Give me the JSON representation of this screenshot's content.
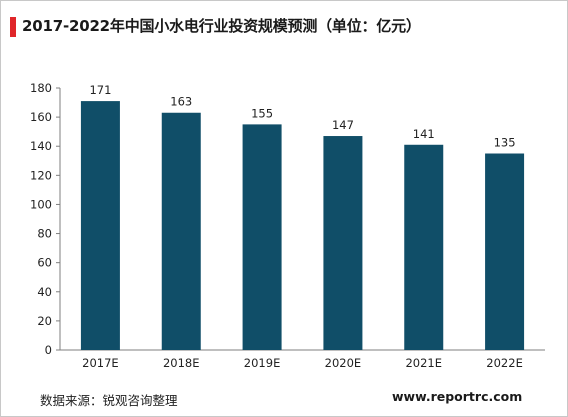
{
  "title": "2017-2022年中国小水电行业投资规模预测（单位：亿元）",
  "source": "数据来源：锐观咨询整理",
  "site": "www.reportrc.com",
  "colors": {
    "bar": "#104e68",
    "accent": "#e0262a",
    "axis": "#7f7f7f"
  },
  "chart_data": {
    "type": "bar",
    "title": "2017-2022年中国小水电行业投资规模预测（单位：亿元）",
    "categories": [
      "2017E",
      "2018E",
      "2019E",
      "2020E",
      "2021E",
      "2022E"
    ],
    "values": [
      171,
      163,
      155,
      147,
      141,
      135
    ],
    "yticks": [
      0,
      20,
      40,
      60,
      80,
      100,
      120,
      140,
      160,
      180
    ],
    "ylim": [
      0,
      180
    ],
    "xlabel": "",
    "ylabel": "",
    "grid": false,
    "legend": "none"
  }
}
